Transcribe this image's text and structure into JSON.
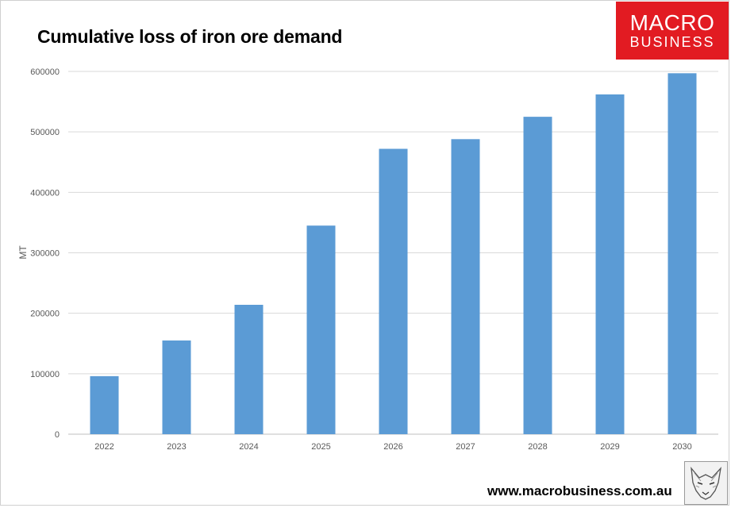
{
  "header": {
    "title": "Cumulative loss of iron ore demand"
  },
  "logo": {
    "line1": "MACRO",
    "line2": "BUSINESS",
    "color": "#e21b22"
  },
  "footer": {
    "url": "www.macrobusiness.com.au"
  },
  "chart_data": {
    "type": "bar",
    "title": "Cumulative loss of iron ore demand",
    "ylabel": "MT",
    "xlabel": "",
    "categories": [
      "2022",
      "2023",
      "2024",
      "2025",
      "2026",
      "2027",
      "2028",
      "2029",
      "2030"
    ],
    "values": [
      96000,
      155000,
      214000,
      345000,
      472000,
      488000,
      525000,
      562000,
      597000
    ],
    "ylim": [
      0,
      600000
    ],
    "yticks": [
      0,
      100000,
      200000,
      300000,
      400000,
      500000,
      600000
    ],
    "ytick_labels": [
      "0",
      "100000",
      "200000",
      "300000",
      "400000",
      "500000",
      "600000"
    ],
    "grid": true,
    "legend": "none",
    "bar_color": "#5b9bd5"
  }
}
